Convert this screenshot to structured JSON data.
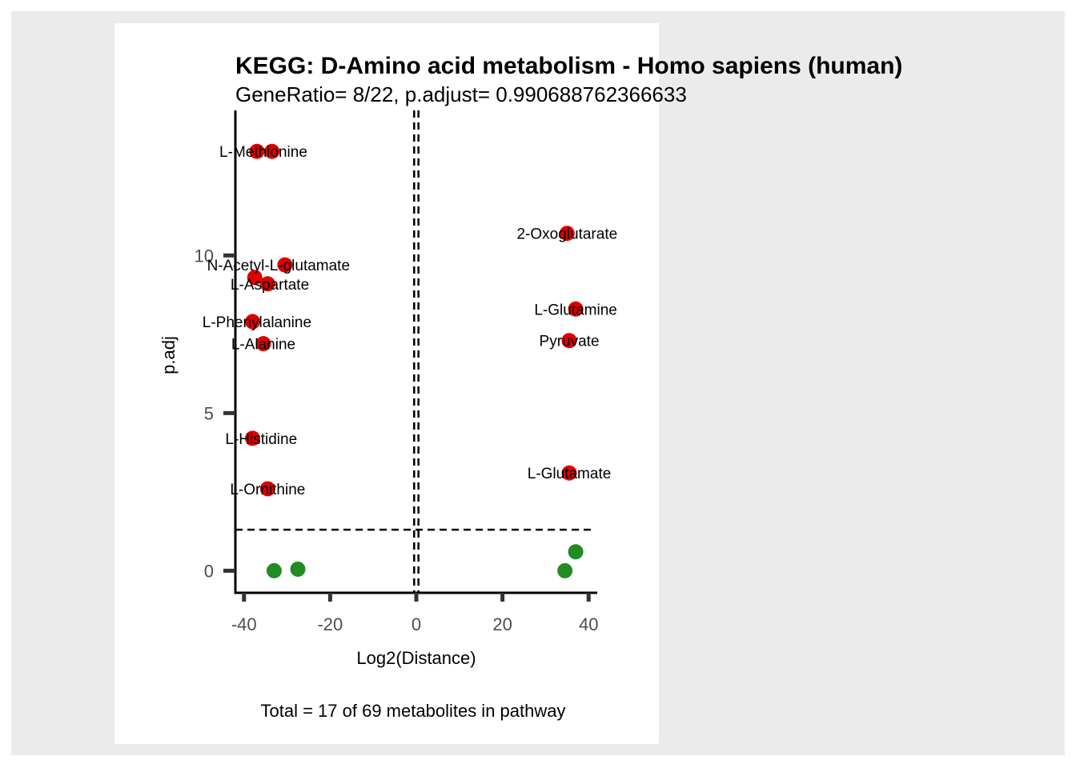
{
  "colors": {
    "outer_background": "#ebebeb",
    "panel_background": "#ffffff",
    "significant": "#e00000",
    "not_significant": "#228b22",
    "axis": "#000000"
  },
  "chart_data": {
    "type": "scatter",
    "title": "KEGG: D-Amino acid metabolism - Homo sapiens (human)",
    "subtitle": "GeneRatio= 8/22, p.adjust= 0.990688762366633",
    "xlabel": "Log2(Distance)",
    "ylabel": "p.adj",
    "caption": "Total = 17 of 69 metabolites in pathway",
    "xlim": [
      -42,
      42
    ],
    "ylim": [
      -0.7,
      14.6
    ],
    "x_ticks": [
      -40,
      -20,
      0,
      20,
      40
    ],
    "x_tick_labels": [
      "-40",
      "-20",
      "0",
      "20",
      "40"
    ],
    "y_ticks": [
      0,
      5,
      10
    ],
    "y_tick_labels": [
      "0",
      "5",
      "10"
    ],
    "vlines": [
      -0.5,
      0.5
    ],
    "hline": 1.3,
    "grid": false,
    "legend": "none",
    "significant_points": [
      {
        "label": "L-Methionine",
        "x": -37,
        "y": 13.3
      },
      {
        "label": "L-Methionine",
        "x": -33.5,
        "y": 13.3
      },
      {
        "label": "2-Oxoglutarate",
        "x": 35,
        "y": 10.7
      },
      {
        "label": "N-Acetyl-L-glutamate",
        "x": -30.5,
        "y": 9.7
      },
      {
        "label": "L-Aspartate",
        "x": -37.5,
        "y": 9.3
      },
      {
        "label": "L-Aspartate",
        "x": -34.5,
        "y": 9.1
      },
      {
        "label": "L-Glutamine",
        "x": 37,
        "y": 8.3
      },
      {
        "label": "L-Phenylalanine",
        "x": -38,
        "y": 7.9
      },
      {
        "label": "Pyruvate",
        "x": 35.5,
        "y": 7.3
      },
      {
        "label": "L-Alanine",
        "x": -35.5,
        "y": 7.2
      },
      {
        "label": "L-Histidine",
        "x": -38,
        "y": 4.2
      },
      {
        "label": "L-Glutamate",
        "x": 35.5,
        "y": 3.1
      },
      {
        "label": "L-Ornithine",
        "x": -34.5,
        "y": 2.6
      }
    ],
    "label_positions": [
      {
        "text": "L-Methionine",
        "x": -35.5,
        "y": 13.3
      },
      {
        "text": "2-Oxoglutarate",
        "x": 35,
        "y": 10.7
      },
      {
        "text": "N-Acetyl-L-glutamate",
        "x": -32,
        "y": 9.7
      },
      {
        "text": "L-Aspartate",
        "x": -34,
        "y": 9.1
      },
      {
        "text": "L-Glutamine",
        "x": 37,
        "y": 8.3
      },
      {
        "text": "L-Phenylalanine",
        "x": -37,
        "y": 7.9
      },
      {
        "text": "Pyruvate",
        "x": 35.5,
        "y": 7.3
      },
      {
        "text": "L-Alanine",
        "x": -35.5,
        "y": 7.2
      },
      {
        "text": "L-Histidine",
        "x": -36,
        "y": 4.2
      },
      {
        "text": "L-Glutamate",
        "x": 35.5,
        "y": 3.1
      },
      {
        "text": "L-Ornithine",
        "x": -34.5,
        "y": 2.6
      }
    ],
    "nonsignificant_points": [
      {
        "x": -33,
        "y": 0.0
      },
      {
        "x": -27.5,
        "y": 0.05
      },
      {
        "x": 34.5,
        "y": 0.0
      },
      {
        "x": 37,
        "y": 0.6
      }
    ]
  }
}
